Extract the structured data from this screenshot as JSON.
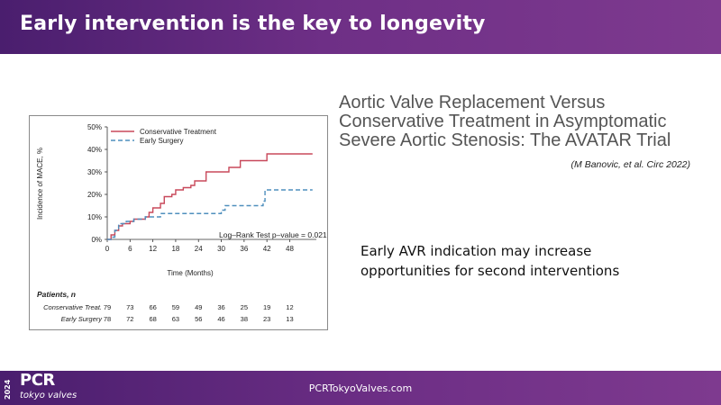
{
  "slide": {
    "title": "Early intervention is the key to longevity",
    "study_title": "Aortic Valve Replacement Versus Conservative Treatment in Asymptomatic Severe Aortic Stenosis: The AVATAR Trial",
    "citation": "(M Banovic, et al. Circ 2022)",
    "body_text": "Early AVR indication may increase opportunities for second interventions",
    "footer_url": "PCRTokyoValves.com",
    "logo_main": "PCR",
    "logo_sub": "tokyo valves",
    "logo_year": "2024"
  },
  "colors": {
    "header": "#6e2f86",
    "conservative": "#c8485a",
    "early_surgery": "#4f8fbd"
  },
  "chart_data": {
    "type": "line",
    "ylabel": "Incidence of MACE, %",
    "xlabel": "Time (Months)",
    "xlim": [
      0,
      55
    ],
    "ylim": [
      0,
      50
    ],
    "x_ticks": [
      0,
      6,
      12,
      18,
      24,
      30,
      36,
      42,
      48
    ],
    "y_ticks": [
      0,
      10,
      20,
      30,
      40,
      50
    ],
    "y_tick_labels": [
      "0%",
      "10%",
      "20%",
      "30%",
      "40%",
      "50%"
    ],
    "legend": {
      "placement": "top-left"
    },
    "annotation": "Log–Rank Test p–value = 0.021",
    "series": [
      {
        "name": "Conservative Treatment",
        "color": "#c8485a",
        "dash": "solid",
        "points": [
          [
            0,
            0
          ],
          [
            1,
            2
          ],
          [
            2,
            4
          ],
          [
            3,
            6
          ],
          [
            4,
            7
          ],
          [
            6,
            8
          ],
          [
            7,
            9
          ],
          [
            10,
            10
          ],
          [
            11,
            12
          ],
          [
            12,
            14
          ],
          [
            14,
            16
          ],
          [
            15,
            19
          ],
          [
            17,
            20
          ],
          [
            18,
            22
          ],
          [
            20,
            23
          ],
          [
            22,
            24
          ],
          [
            23,
            26
          ],
          [
            26,
            30
          ],
          [
            32,
            32
          ],
          [
            35,
            35
          ],
          [
            42,
            38
          ],
          [
            54,
            38
          ]
        ]
      },
      {
        "name": "Early Surgery",
        "color": "#4f8fbd",
        "dash": "dashed",
        "points": [
          [
            0,
            0
          ],
          [
            1,
            1
          ],
          [
            2,
            4
          ],
          [
            3,
            7
          ],
          [
            5,
            8
          ],
          [
            7,
            9
          ],
          [
            10,
            10
          ],
          [
            14,
            11.5
          ],
          [
            30,
            13
          ],
          [
            31,
            15
          ],
          [
            41,
            17
          ],
          [
            41.5,
            22
          ],
          [
            54,
            22
          ]
        ]
      }
    ],
    "risk_table": {
      "title": "Patients, n",
      "times": [
        0,
        6,
        12,
        18,
        24,
        30,
        36,
        42,
        48
      ],
      "rows": [
        {
          "label": "Conservative Treat.",
          "values": [
            "79",
            "73",
            "66",
            "59",
            "49",
            "36",
            "25",
            "19",
            "12"
          ]
        },
        {
          "label": "Early Surgery",
          "values": [
            "78",
            "72",
            "68",
            "63",
            "56",
            "46",
            "38",
            "23",
            "13"
          ]
        }
      ]
    }
  }
}
